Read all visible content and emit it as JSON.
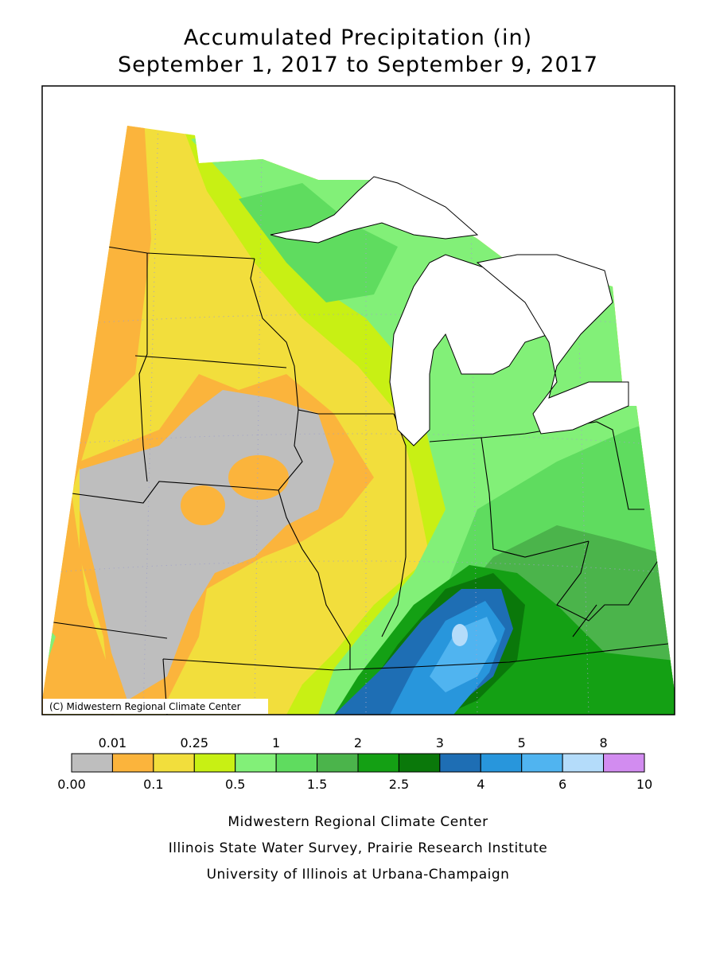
{
  "title": [
    "Accumulated Precipitation (in)",
    "September 1, 2017 to September 9, 2017"
  ],
  "copyright": "(C) Midwestern Regional Climate Center",
  "legend": {
    "boundaries": [
      "0.00",
      "0.01",
      "0.1",
      "0.25",
      "0.5",
      "1",
      "1.5",
      "2",
      "2.5",
      "3",
      "4",
      "5",
      "6",
      "8",
      "10"
    ],
    "colors": [
      "#bebebe",
      "#fbb43c",
      "#f2de3c",
      "#c8f014",
      "#82f078",
      "#5fdc5f",
      "#4bb44b",
      "#14a014",
      "#0a780a",
      "#1e6eb4",
      "#2896dc",
      "#50b4f0",
      "#b4dcfa",
      "#d28cf0"
    ]
  },
  "credits": [
    "Midwestern Regional Climate Center",
    "Illinois State Water Survey, Prairie Research Institute",
    "University of Illinois at Urbana-Champaign"
  ]
}
